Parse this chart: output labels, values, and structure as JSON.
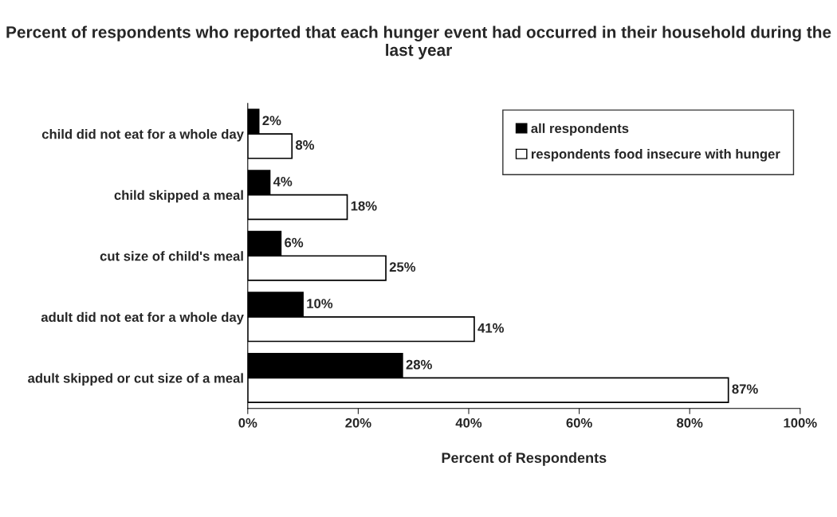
{
  "chart_data": {
    "type": "bar",
    "orientation": "horizontal",
    "title": "Percent of respondents who reported that each hunger event had occurred in their household during the last year",
    "xlabel": "Percent of Respondents",
    "categories": [
      "child did not eat for a whole day",
      "child skipped a meal",
      "cut size of child's meal",
      "adult did not eat for a whole day",
      "adult skipped or cut size of a meal"
    ],
    "series": [
      {
        "name": "all respondents",
        "color": "#000000",
        "values": [
          2,
          4,
          6,
          10,
          28
        ],
        "value_labels": [
          "2%",
          "4%",
          "6%",
          "10%",
          "28%"
        ]
      },
      {
        "name": "respondents food insecure with hunger",
        "color": "#ffffff",
        "values": [
          8,
          18,
          25,
          41,
          87
        ],
        "value_labels": [
          "8%",
          "18%",
          "25%",
          "41%",
          "87%"
        ]
      }
    ],
    "xlim": [
      0,
      100
    ],
    "xticks": [
      {
        "value": 0,
        "label": "0%"
      },
      {
        "value": 20,
        "label": "20%"
      },
      {
        "value": 40,
        "label": "40%"
      },
      {
        "value": 60,
        "label": "60%"
      },
      {
        "value": 80,
        "label": "80%"
      },
      {
        "value": 100,
        "label": "100%"
      }
    ],
    "grid": false,
    "legend": "top right"
  }
}
